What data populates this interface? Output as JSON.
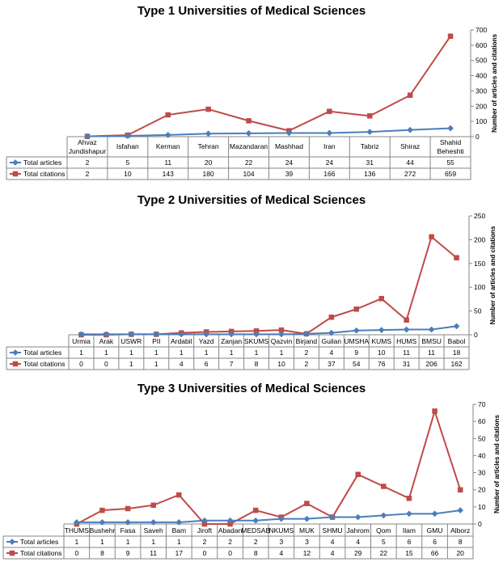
{
  "chart_data": [
    {
      "type": "line",
      "title": "Type 1 Universities of Medical Sciences",
      "ylabel": "Number of articles and citations",
      "ylim": [
        0,
        700
      ],
      "yticks": [
        0,
        100,
        200,
        300,
        400,
        500,
        600,
        700
      ],
      "grid": false,
      "legend": "data table rows",
      "categories": [
        "Ahvaz Jundishapur",
        "Isfahan",
        "Kerman",
        "Tehran",
        "Mazandaran",
        "Mashhad",
        "Iran",
        "Tabriz",
        "Shiraz",
        "Shahid Beheshti"
      ],
      "series": [
        {
          "name": "Total articles",
          "color": "#4a7ebb",
          "marker": "diamond",
          "values": [
            2,
            5,
            11,
            20,
            22,
            24,
            24,
            31,
            44,
            55
          ]
        },
        {
          "name": "Total citations",
          "color": "#be4b48",
          "marker": "square",
          "values": [
            2,
            10,
            143,
            180,
            104,
            39,
            166,
            136,
            272,
            659
          ]
        }
      ]
    },
    {
      "type": "line",
      "title": "Type 2 Universities of Medical Sciences",
      "ylabel": "Number of articles and citations",
      "ylim": [
        0,
        250
      ],
      "yticks": [
        0,
        50,
        100,
        150,
        200,
        250
      ],
      "grid": false,
      "legend": "data table rows",
      "categories": [
        "Urmia",
        "Arak",
        "USWR",
        "PII",
        "Ardabil",
        "Yazd",
        "Zanjan",
        "SKUMS",
        "Qazvin",
        "Birjand",
        "Guilan",
        "UMSHA",
        "KUMS",
        "HUMS",
        "BMSU",
        "Babol"
      ],
      "series": [
        {
          "name": "Total articles",
          "color": "#4a7ebb",
          "marker": "diamond",
          "values": [
            1,
            1,
            1,
            1,
            1,
            1,
            1,
            1,
            1,
            2,
            4,
            9,
            10,
            11,
            11,
            18
          ]
        },
        {
          "name": "Total citations",
          "color": "#be4b48",
          "marker": "square",
          "values": [
            0,
            0,
            1,
            1,
            4,
            6,
            7,
            8,
            10,
            2,
            37,
            54,
            76,
            31,
            206,
            162
          ]
        }
      ]
    },
    {
      "type": "line",
      "title": "Type 3 Universities of Medical Sciences",
      "ylabel": "Number of articles and citations",
      "ylim": [
        0,
        70
      ],
      "yticks": [
        0,
        10,
        20,
        30,
        40,
        50,
        60,
        70
      ],
      "grid": false,
      "legend": "data table rows",
      "categories": [
        "THUMS",
        "Bushehr",
        "Fasa",
        "Saveh",
        "Bam",
        "Jiroft",
        "Abadan",
        "MEDSAB",
        "NKUMS",
        "MUK",
        "SHMU",
        "Jahrom",
        "Qom",
        "Ilam",
        "GMU",
        "Alborz"
      ],
      "series": [
        {
          "name": "Total articles",
          "color": "#4a7ebb",
          "marker": "diamond",
          "values": [
            1,
            1,
            1,
            1,
            1,
            2,
            2,
            2,
            3,
            3,
            4,
            4,
            5,
            6,
            6,
            8
          ]
        },
        {
          "name": "Total citations",
          "color": "#be4b48",
          "marker": "square",
          "values": [
            0,
            8,
            9,
            11,
            17,
            0,
            0,
            8,
            4,
            12,
            4,
            29,
            22,
            15,
            66,
            20
          ]
        }
      ]
    }
  ]
}
